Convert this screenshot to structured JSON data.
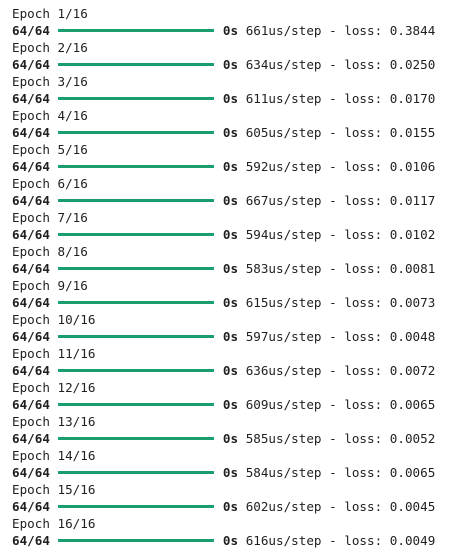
{
  "colors": {
    "progress_bar": "#1a9e6e",
    "text": "#1f1f1f",
    "background": "#ffffff"
  },
  "epochs": [
    {
      "header": "Epoch 1/16",
      "steps": "64/64",
      "progress": 1.0,
      "time": "0s",
      "per_step": "661us/step",
      "loss_label": "loss:",
      "loss": "0.3844"
    },
    {
      "header": "Epoch 2/16",
      "steps": "64/64",
      "progress": 1.0,
      "time": "0s",
      "per_step": "634us/step",
      "loss_label": "loss:",
      "loss": "0.0250"
    },
    {
      "header": "Epoch 3/16",
      "steps": "64/64",
      "progress": 1.0,
      "time": "0s",
      "per_step": "611us/step",
      "loss_label": "loss:",
      "loss": "0.0170"
    },
    {
      "header": "Epoch 4/16",
      "steps": "64/64",
      "progress": 1.0,
      "time": "0s",
      "per_step": "605us/step",
      "loss_label": "loss:",
      "loss": "0.0155"
    },
    {
      "header": "Epoch 5/16",
      "steps": "64/64",
      "progress": 1.0,
      "time": "0s",
      "per_step": "592us/step",
      "loss_label": "loss:",
      "loss": "0.0106"
    },
    {
      "header": "Epoch 6/16",
      "steps": "64/64",
      "progress": 1.0,
      "time": "0s",
      "per_step": "667us/step",
      "loss_label": "loss:",
      "loss": "0.0117"
    },
    {
      "header": "Epoch 7/16",
      "steps": "64/64",
      "progress": 1.0,
      "time": "0s",
      "per_step": "594us/step",
      "loss_label": "loss:",
      "loss": "0.0102"
    },
    {
      "header": "Epoch 8/16",
      "steps": "64/64",
      "progress": 1.0,
      "time": "0s",
      "per_step": "583us/step",
      "loss_label": "loss:",
      "loss": "0.0081"
    },
    {
      "header": "Epoch 9/16",
      "steps": "64/64",
      "progress": 1.0,
      "time": "0s",
      "per_step": "615us/step",
      "loss_label": "loss:",
      "loss": "0.0073"
    },
    {
      "header": "Epoch 10/16",
      "steps": "64/64",
      "progress": 1.0,
      "time": "0s",
      "per_step": "597us/step",
      "loss_label": "loss:",
      "loss": "0.0048"
    },
    {
      "header": "Epoch 11/16",
      "steps": "64/64",
      "progress": 1.0,
      "time": "0s",
      "per_step": "636us/step",
      "loss_label": "loss:",
      "loss": "0.0072"
    },
    {
      "header": "Epoch 12/16",
      "steps": "64/64",
      "progress": 1.0,
      "time": "0s",
      "per_step": "609us/step",
      "loss_label": "loss:",
      "loss": "0.0065"
    },
    {
      "header": "Epoch 13/16",
      "steps": "64/64",
      "progress": 1.0,
      "time": "0s",
      "per_step": "585us/step",
      "loss_label": "loss:",
      "loss": "0.0052"
    },
    {
      "header": "Epoch 14/16",
      "steps": "64/64",
      "progress": 1.0,
      "time": "0s",
      "per_step": "584us/step",
      "loss_label": "loss:",
      "loss": "0.0065"
    },
    {
      "header": "Epoch 15/16",
      "steps": "64/64",
      "progress": 1.0,
      "time": "0s",
      "per_step": "602us/step",
      "loss_label": "loss:",
      "loss": "0.0045"
    },
    {
      "header": "Epoch 16/16",
      "steps": "64/64",
      "progress": 1.0,
      "time": "0s",
      "per_step": "616us/step",
      "loss_label": "loss:",
      "loss": "0.0049"
    }
  ]
}
